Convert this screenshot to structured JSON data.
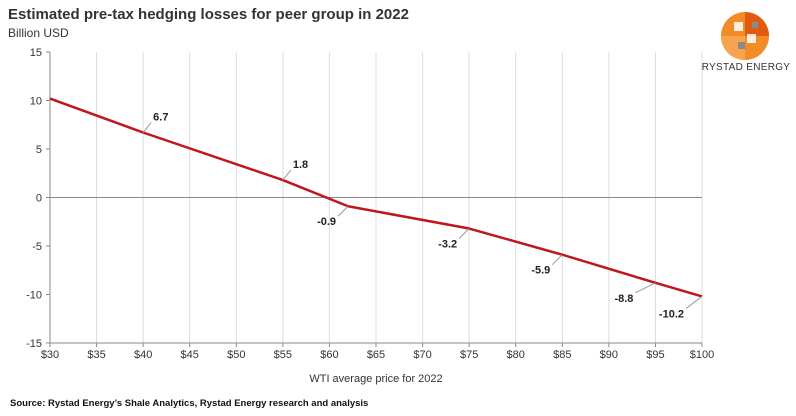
{
  "header": {
    "title": "Estimated pre-tax hedging losses for peer group in 2022",
    "subtitle": "Billion USD"
  },
  "brand": {
    "name": "RYSTAD ENERGY",
    "logo_icon": "rystad-globe-icon",
    "logo_colors": [
      "#f28c28",
      "#e05a10",
      "#8a8a8a"
    ]
  },
  "footer": {
    "source": "Source: Rystad Energy’s Shale Analytics,  Rystad Energy research and analysis"
  },
  "chart_data": {
    "type": "line",
    "xlabel": "WTI average price for 2022",
    "ylabel": "",
    "xlim": [
      30,
      100
    ],
    "ylim": [
      -15,
      15
    ],
    "x_ticks": [
      30,
      35,
      40,
      45,
      50,
      55,
      60,
      65,
      70,
      75,
      80,
      85,
      90,
      95,
      100
    ],
    "x_tick_labels": [
      "$30",
      "$35",
      "$40",
      "$45",
      "$50",
      "$55",
      "$60",
      "$65",
      "$70",
      "$75",
      "$80",
      "$85",
      "$90",
      "$95",
      "$100"
    ],
    "y_ticks": [
      -15,
      -10,
      -5,
      0,
      5,
      10,
      15
    ],
    "y_tick_labels": [
      "-15",
      "-10",
      "-5",
      "0",
      "5",
      "10",
      "15"
    ],
    "grid": "vertical",
    "line_color": "#c0161c",
    "series": [
      {
        "x": [
          30,
          40,
          55,
          62,
          75,
          85,
          95,
          100
        ],
        "values": [
          10.2,
          6.7,
          1.8,
          -0.9,
          -3.2,
          -5.9,
          -8.8,
          -10.2
        ]
      }
    ],
    "annotations": [
      {
        "x": 40,
        "y": 6.7,
        "label": "6.7"
      },
      {
        "x": 55,
        "y": 1.8,
        "label": "1.8"
      },
      {
        "x": 62,
        "y": -0.9,
        "label": "-0.9"
      },
      {
        "x": 75,
        "y": -3.2,
        "label": "-3.2"
      },
      {
        "x": 85,
        "y": -5.9,
        "label": "-5.9"
      },
      {
        "x": 95,
        "y": -8.8,
        "label": "-8.8"
      },
      {
        "x": 100,
        "y": -10.2,
        "label": "-10.2"
      }
    ]
  }
}
